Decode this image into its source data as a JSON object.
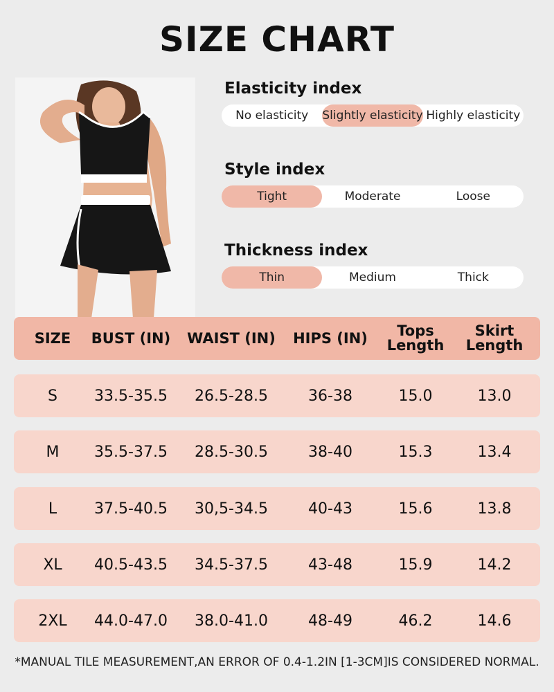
{
  "title": "SIZE CHART",
  "elasticity": {
    "title": "Elasticity index",
    "options": [
      "No elasticity",
      "Slightly elasticity",
      "Highly elasticity"
    ],
    "selected": "Slightly elasticity"
  },
  "style": {
    "title": "Style index",
    "options": [
      "Tight",
      "Moderate",
      "Loose"
    ],
    "selected": "Tight"
  },
  "thickness": {
    "title": "Thickness index",
    "options": [
      "Thin",
      "Medium",
      "Thick"
    ],
    "selected": "Thin"
  },
  "table": {
    "headers": [
      "SIZE",
      "BUST (IN)",
      "WAIST (IN)",
      "HIPS (IN)",
      "Tops Length",
      "Skirt Length"
    ],
    "rows": [
      [
        "S",
        "33.5-35.5",
        "26.5-28.5",
        "36-38",
        "15.0",
        "13.0"
      ],
      [
        "M",
        "35.5-37.5",
        "28.5-30.5",
        "38-40",
        "15.3",
        "13.4"
      ],
      [
        "L",
        "37.5-40.5",
        "30,5-34.5",
        "40-43",
        "15.6",
        "13.8"
      ],
      [
        "XL",
        "40.5-43.5",
        "34.5-37.5",
        "43-48",
        "15.9",
        "14.2"
      ],
      [
        "2XL",
        "44.0-47.0",
        "38.0-41.0",
        "48-49",
        "46.2",
        "14.6"
      ]
    ]
  },
  "note": "*MANUAL TILE MEASUREMENT,AN ERROR OF 0.4-1.2IN [1-3CM]IS CONSIDERED NORMAL.",
  "colors": {
    "background": "#ececec",
    "accent": "#f1b7a6",
    "row": "#f8d6cc"
  }
}
